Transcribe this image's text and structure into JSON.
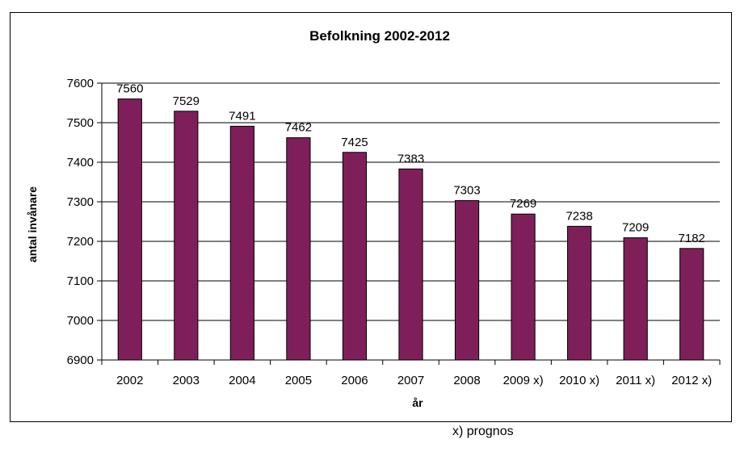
{
  "footnote": "x) prognos",
  "colors": {
    "bar": "#7F1F5A",
    "bar_outline": "#000000",
    "grid": "#000000",
    "background": "#ffffff"
  },
  "chart_data": {
    "type": "bar",
    "title": "Befolkning 2002-2012",
    "xlabel": "år",
    "ylabel": "antal invånare",
    "categories": [
      "2002",
      "2003",
      "2004",
      "2005",
      "2006",
      "2007",
      "2008",
      "2009 x)",
      "2010 x)",
      "2011 x)",
      "2012 x)"
    ],
    "values": [
      7560,
      7529,
      7491,
      7462,
      7425,
      7383,
      7303,
      7269,
      7238,
      7209,
      7182
    ],
    "ylim": [
      6900,
      7600
    ],
    "yticks": [
      6900,
      7000,
      7100,
      7200,
      7300,
      7400,
      7500,
      7600
    ],
    "grid": true,
    "data_labels": true,
    "legend": "none"
  }
}
